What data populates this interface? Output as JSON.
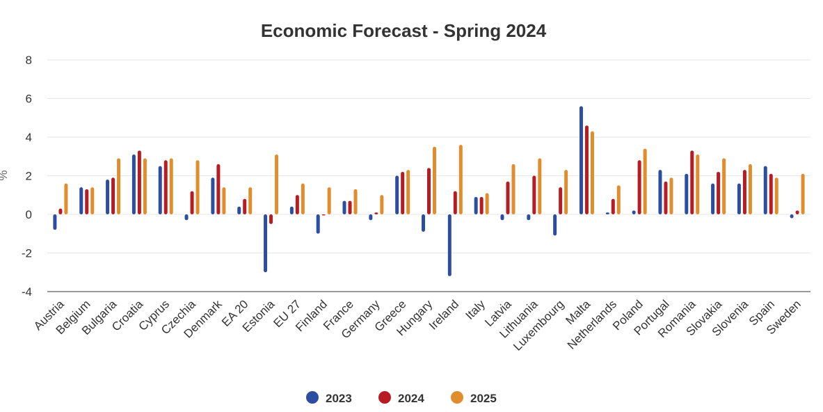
{
  "chart_data": {
    "type": "bar",
    "title": "Economic Forecast - Spring 2024",
    "xlabel": "",
    "ylabel": "%",
    "ylim": [
      -4,
      8
    ],
    "yticks": [
      8,
      6,
      4,
      2,
      0,
      -2,
      -4
    ],
    "grid": true,
    "legend_position": "bottom",
    "categories": [
      "Austria",
      "Belgium",
      "Bulgaria",
      "Croatia",
      "Cyprus",
      "Czechia",
      "Denmark",
      "EA 20",
      "Estonia",
      "EU 27",
      "Finland",
      "France",
      "Germany",
      "Greece",
      "Hungary",
      "Ireland",
      "Italy",
      "Latvia",
      "Lithuania",
      "Luxembourg",
      "Malta",
      "Netherlands",
      "Poland",
      "Portugal",
      "Romania",
      "Slovakia",
      "Slovenia",
      "Spain",
      "Sweden"
    ],
    "series": [
      {
        "name": "2023",
        "color": "#2c4ea0",
        "values": [
          -0.8,
          1.4,
          1.8,
          3.1,
          2.5,
          -0.3,
          1.9,
          0.4,
          -3.0,
          0.4,
          -1.0,
          0.7,
          -0.3,
          2.0,
          -0.9,
          -3.2,
          0.9,
          -0.3,
          -0.3,
          -1.1,
          5.6,
          0.1,
          0.2,
          2.3,
          2.1,
          1.6,
          1.6,
          2.5,
          -0.2
        ]
      },
      {
        "name": "2024",
        "color": "#b71c25",
        "values": [
          0.3,
          1.3,
          1.9,
          3.3,
          2.8,
          1.2,
          2.6,
          0.8,
          -0.5,
          1.0,
          0.0,
          0.7,
          0.1,
          2.2,
          2.4,
          1.2,
          0.9,
          1.7,
          2.0,
          1.4,
          4.6,
          0.8,
          2.8,
          1.7,
          3.3,
          2.2,
          2.3,
          2.1,
          0.2
        ]
      },
      {
        "name": "2025",
        "color": "#e08e2d",
        "values": [
          1.6,
          1.4,
          2.9,
          2.9,
          2.9,
          2.8,
          1.4,
          1.4,
          3.1,
          1.6,
          1.4,
          1.3,
          1.0,
          2.3,
          3.5,
          3.6,
          1.1,
          2.6,
          2.9,
          2.3,
          4.3,
          1.5,
          3.4,
          1.9,
          3.1,
          2.9,
          2.6,
          1.9,
          2.1
        ]
      }
    ]
  }
}
